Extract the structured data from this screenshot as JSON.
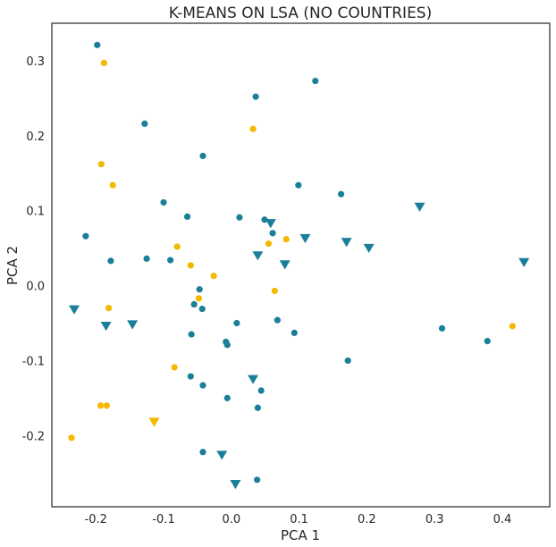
{
  "chart_data": {
    "type": "scatter",
    "title": "K-MEANS ON LSA (NO COUNTRIES)",
    "xlabel": "PCA 1",
    "ylabel": "PCA 2",
    "xlim": [
      -0.265,
      0.47
    ],
    "ylim": [
      -0.295,
      0.35
    ],
    "xticks": [
      "-0.2",
      "-0.1",
      "0.0",
      "0.1",
      "0.2",
      "0.3",
      "0.4"
    ],
    "xtick_values": [
      -0.2,
      -0.1,
      0.0,
      0.1,
      0.2,
      0.3,
      0.4
    ],
    "yticks": [
      "-0.2",
      "-0.1",
      "0.0",
      "0.1",
      "0.2",
      "0.3"
    ],
    "ytick_values": [
      -0.2,
      -0.1,
      0.0,
      0.1,
      0.2,
      0.3
    ],
    "grid": false,
    "legend": null,
    "series": [
      {
        "marker": "circle",
        "color": "#1a7f99",
        "points": [
          [
            -0.198,
            0.321
          ],
          [
            0.124,
            0.273
          ],
          [
            0.036,
            0.252
          ],
          [
            -0.128,
            0.216
          ],
          [
            -0.042,
            0.173
          ],
          [
            0.099,
            0.134
          ],
          [
            0.162,
            0.122
          ],
          [
            -0.1,
            0.111
          ],
          [
            -0.065,
            0.092
          ],
          [
            0.012,
            0.091
          ],
          [
            0.049,
            0.088
          ],
          [
            0.061,
            0.07
          ],
          [
            -0.215,
            0.066
          ],
          [
            -0.125,
            0.036
          ],
          [
            -0.178,
            0.033
          ],
          [
            -0.09,
            0.034
          ],
          [
            -0.047,
            -0.005
          ],
          [
            -0.055,
            -0.025
          ],
          [
            -0.043,
            -0.031
          ],
          [
            0.008,
            -0.05
          ],
          [
            0.068,
            -0.046
          ],
          [
            0.093,
            -0.063
          ],
          [
            -0.059,
            -0.065
          ],
          [
            -0.008,
            -0.075
          ],
          [
            -0.006,
            -0.079
          ],
          [
            0.311,
            -0.057
          ],
          [
            0.378,
            -0.074
          ],
          [
            0.172,
            -0.1
          ],
          [
            -0.06,
            -0.121
          ],
          [
            -0.042,
            -0.133
          ],
          [
            0.044,
            -0.14
          ],
          [
            -0.006,
            -0.15
          ],
          [
            0.039,
            -0.163
          ],
          [
            -0.042,
            -0.222
          ],
          [
            0.038,
            -0.259
          ]
        ]
      },
      {
        "marker": "circle",
        "color": "#f5b800",
        "points": [
          [
            -0.188,
            0.297
          ],
          [
            0.032,
            0.209
          ],
          [
            -0.192,
            0.162
          ],
          [
            -0.175,
            0.134
          ],
          [
            -0.08,
            0.052
          ],
          [
            0.055,
            0.056
          ],
          [
            0.081,
            0.062
          ],
          [
            -0.06,
            0.027
          ],
          [
            -0.026,
            0.013
          ],
          [
            0.064,
            -0.007
          ],
          [
            -0.048,
            -0.017
          ],
          [
            -0.181,
            -0.03
          ],
          [
            0.415,
            -0.054
          ],
          [
            -0.084,
            -0.109
          ],
          [
            -0.193,
            -0.16
          ],
          [
            -0.184,
            -0.16
          ],
          [
            -0.236,
            -0.203
          ]
        ]
      },
      {
        "marker": "triangle-down",
        "color": "#1a7f99",
        "points": [
          [
            0.278,
            0.105
          ],
          [
            0.058,
            0.083
          ],
          [
            0.109,
            0.063
          ],
          [
            0.17,
            0.058
          ],
          [
            0.203,
            0.05
          ],
          [
            0.039,
            0.04
          ],
          [
            0.432,
            0.031
          ],
          [
            0.079,
            0.028
          ],
          [
            -0.232,
            -0.032
          ],
          [
            -0.185,
            -0.054
          ],
          [
            -0.146,
            -0.052
          ],
          [
            0.032,
            -0.125
          ],
          [
            -0.014,
            -0.226
          ],
          [
            0.006,
            -0.265
          ]
        ]
      },
      {
        "marker": "triangle-down",
        "color": "#f5b800",
        "points": [
          [
            -0.114,
            -0.182
          ]
        ]
      }
    ]
  }
}
